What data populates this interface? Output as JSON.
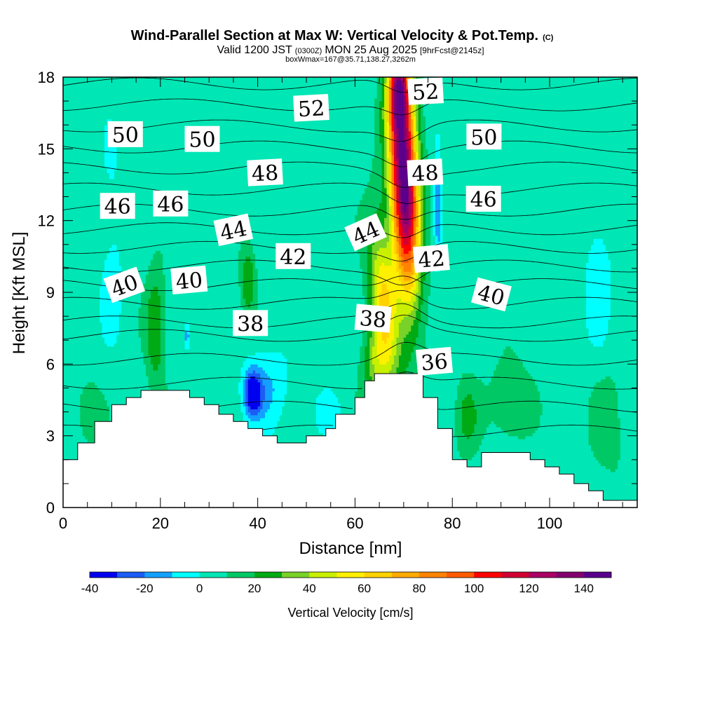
{
  "title": {
    "main": "Wind-Parallel Section at Max W: Vertical Velocity & Pot.Temp.",
    "main_tag": "(C)",
    "valid_prefix": "Valid 1200 JST",
    "valid_utc": "(0300Z)",
    "valid_date": "MON 25 Aug 2025",
    "forecast": "[9hrFcst@2145z]",
    "box": "boxWmax=167@35.71,138.27,3262m"
  },
  "chart_data": {
    "type": "heatmap",
    "xlabel": "Distance [nm]",
    "ylabel": "Height [Kft MSL]",
    "xlim": [
      0,
      118
    ],
    "ylim": [
      0,
      18
    ],
    "xticks": [
      0,
      20,
      40,
      60,
      80,
      100
    ],
    "yticks": [
      0,
      3,
      6,
      9,
      12,
      15,
      18
    ],
    "colorbar": {
      "label": "Vertical Velocity [cm/s]",
      "levels": [
        -40,
        -30,
        -20,
        -10,
        0,
        10,
        20,
        30,
        40,
        50,
        60,
        70,
        80,
        90,
        100,
        110,
        120,
        130,
        140,
        150
      ],
      "colors": [
        "#0000f0",
        "#1c5cf5",
        "#14a0ff",
        "#00ffff",
        "#00e6b4",
        "#00c864",
        "#00aa14",
        "#78d228",
        "#c8f000",
        "#fff000",
        "#ffd200",
        "#ffaa00",
        "#ff8200",
        "#ff5a00",
        "#ff0000",
        "#d20032",
        "#aa0064",
        "#82006e",
        "#5a008c"
      ],
      "tick_labels": [
        "-40",
        "-20",
        "0",
        "20",
        "40",
        "60",
        "80",
        "100",
        "120",
        "140"
      ],
      "tick_values": [
        -40,
        -20,
        0,
        20,
        40,
        60,
        80,
        100,
        120,
        140
      ]
    },
    "terrain": {
      "distance": [
        0,
        3,
        3,
        6.5,
        6.5,
        10,
        10,
        13,
        13,
        16,
        16,
        18,
        18,
        22,
        22,
        26,
        26,
        29,
        29,
        32,
        32,
        35,
        35,
        38,
        38,
        41,
        41,
        44,
        44,
        50,
        50,
        54,
        54,
        56,
        56,
        60,
        60,
        62,
        62,
        64,
        64,
        70,
        70,
        74,
        74,
        77,
        77,
        80,
        80,
        83,
        83,
        86,
        86,
        89,
        89,
        96,
        96,
        99,
        99,
        102,
        102,
        105,
        105,
        108,
        108,
        111,
        111,
        114,
        114,
        117,
        117,
        118
      ],
      "height": [
        2.0,
        2.0,
        2.7,
        2.7,
        3.6,
        3.6,
        4.3,
        4.3,
        4.6,
        4.6,
        4.9,
        4.9,
        4.9,
        4.9,
        4.9,
        4.9,
        4.6,
        4.6,
        4.3,
        4.3,
        3.9,
        3.9,
        3.6,
        3.6,
        3.3,
        3.3,
        3.0,
        3.0,
        2.7,
        2.7,
        3.0,
        3.0,
        3.3,
        3.3,
        3.9,
        3.9,
        4.6,
        4.6,
        5.3,
        5.3,
        5.6,
        5.6,
        5.6,
        5.6,
        4.6,
        4.6,
        3.3,
        3.3,
        2.0,
        2.0,
        1.7,
        1.7,
        2.3,
        2.3,
        2.3,
        2.3,
        2.0,
        2.0,
        1.7,
        1.7,
        1.4,
        1.4,
        1.0,
        1.0,
        0.7,
        0.7,
        0.3,
        0.3,
        0.3,
        0.3,
        0.3,
        0.3
      ]
    },
    "w_background": 5,
    "w_features": [
      {
        "x": 70,
        "y": 14,
        "sx": 2.8,
        "sy": 5.0,
        "amp": 147,
        "tilt": -0.2
      },
      {
        "x": 66,
        "y": 8.5,
        "sx": 2.8,
        "sy": 3.5,
        "amp": 55,
        "tilt": -0.35
      },
      {
        "x": 64,
        "y": 6.0,
        "sx": 2.5,
        "sy": 1.4,
        "amp": 25,
        "tilt": 0
      },
      {
        "x": 69,
        "y": 17.5,
        "sx": 2.0,
        "sy": 1.5,
        "amp": 60,
        "tilt": 0
      },
      {
        "x": 77,
        "y": 13,
        "sx": 0.7,
        "sy": 2.8,
        "amp": -22,
        "tilt": 0
      },
      {
        "x": 39,
        "y": 4.8,
        "sx": 1.8,
        "sy": 0.9,
        "amp": -45,
        "tilt": 0
      },
      {
        "x": 42,
        "y": 5.0,
        "sx": 4.5,
        "sy": 1.6,
        "amp": -15,
        "tilt": 0
      },
      {
        "x": 25.5,
        "y": 7.2,
        "sx": 0.4,
        "sy": 0.5,
        "amp": -25,
        "tilt": 0
      },
      {
        "x": 19,
        "y": 7.5,
        "sx": 2.0,
        "sy": 2.5,
        "amp": 25,
        "tilt": 0
      },
      {
        "x": 38,
        "y": 9.5,
        "sx": 1.5,
        "sy": 1.5,
        "amp": 25,
        "tilt": 0
      },
      {
        "x": 92,
        "y": 4.5,
        "sx": 4.0,
        "sy": 1.6,
        "amp": 18,
        "tilt": 0
      },
      {
        "x": 83,
        "y": 3.8,
        "sx": 2.5,
        "sy": 1.6,
        "amp": 18,
        "tilt": 0
      },
      {
        "x": 5,
        "y": 4.0,
        "sx": 3.0,
        "sy": 1.5,
        "amp": 12,
        "tilt": 0
      },
      {
        "x": 112,
        "y": 3.5,
        "sx": 4.0,
        "sy": 2.5,
        "amp": 10,
        "tilt": 0
      },
      {
        "x": 55,
        "y": 4.0,
        "sx": 2.5,
        "sy": 0.8,
        "amp": -12,
        "tilt": 0
      },
      {
        "x": 66,
        "y": 2.0,
        "sx": 6.0,
        "sy": 3.0,
        "amp": 5,
        "tilt": 0
      },
      {
        "x": 10,
        "y": 11,
        "sx": 3.0,
        "sy": 4.0,
        "amp": -8,
        "tilt": 0
      },
      {
        "x": 110,
        "y": 10,
        "sx": 3.0,
        "sy": 3.5,
        "amp": -10,
        "tilt": 0
      }
    ],
    "theta_contours": {
      "levels_min": 33,
      "levels_max": 53,
      "step": 1,
      "labels": [
        {
          "text": "52",
          "x": 51,
          "y": 16.7,
          "angle": -3
        },
        {
          "text": "52",
          "x": 74.5,
          "y": 17.4,
          "angle": -3
        },
        {
          "text": "50",
          "x": 12.8,
          "y": 15.6,
          "angle": 0
        },
        {
          "text": "50",
          "x": 28.6,
          "y": 15.4,
          "angle": 0
        },
        {
          "text": "50",
          "x": 86.5,
          "y": 15.5,
          "angle": 0
        },
        {
          "text": "48",
          "x": 41.5,
          "y": 14.0,
          "angle": -3
        },
        {
          "text": "48",
          "x": 74.4,
          "y": 14.0,
          "angle": -3
        },
        {
          "text": "46",
          "x": 11.2,
          "y": 12.6,
          "angle": 0
        },
        {
          "text": "46",
          "x": 22.1,
          "y": 12.7,
          "angle": 0
        },
        {
          "text": "46",
          "x": 86.4,
          "y": 12.9,
          "angle": 0
        },
        {
          "text": "44",
          "x": 35.0,
          "y": 11.6,
          "angle": -12
        },
        {
          "text": "44",
          "x": 62.2,
          "y": 11.5,
          "angle": -24
        },
        {
          "text": "42",
          "x": 47.3,
          "y": 10.5,
          "angle": 0
        },
        {
          "text": "42",
          "x": 75.7,
          "y": 10.4,
          "angle": -5
        },
        {
          "text": "40",
          "x": 12.6,
          "y": 9.3,
          "angle": -20
        },
        {
          "text": "40",
          "x": 25.9,
          "y": 9.5,
          "angle": -5
        },
        {
          "text": "40",
          "x": 88.0,
          "y": 8.9,
          "angle": 15
        },
        {
          "text": "38",
          "x": 38.5,
          "y": 7.7,
          "angle": 0
        },
        {
          "text": "38",
          "x": 63.7,
          "y": 7.9,
          "angle": 5
        },
        {
          "text": "36",
          "x": 76.3,
          "y": 6.1,
          "angle": -5
        }
      ]
    }
  }
}
